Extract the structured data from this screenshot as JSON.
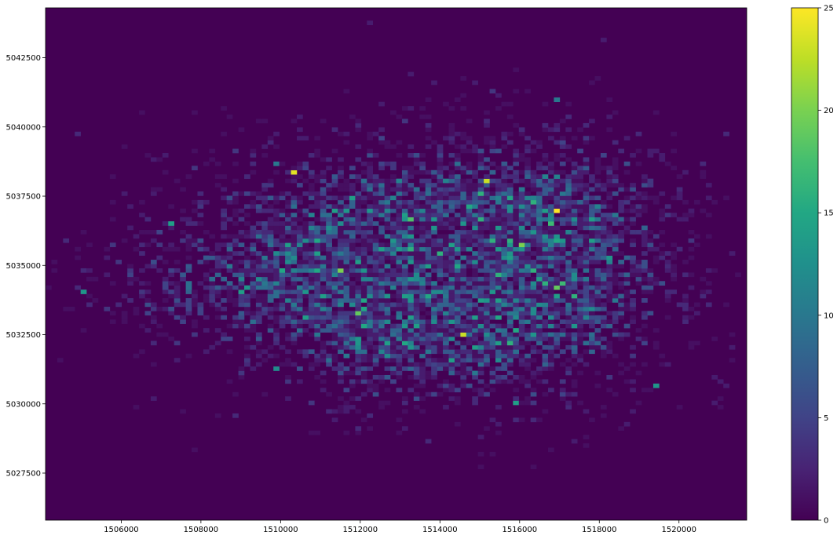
{
  "chart_data": {
    "type": "heatmap",
    "title": "",
    "xlabel": "",
    "ylabel": "",
    "xlim": [
      1504100,
      1521700
    ],
    "ylim": [
      5025800,
      5044300
    ],
    "grid": false,
    "bins": {
      "x": 120,
      "y": 120
    },
    "x_ticks": [
      1506000,
      1508000,
      1510000,
      1512000,
      1514000,
      1516000,
      1518000,
      1520000
    ],
    "x_tick_labels": [
      "1506000",
      "1508000",
      "1510000",
      "1512000",
      "1514000",
      "1516000",
      "1518000",
      "1520000"
    ],
    "y_ticks": [
      5027500,
      5030000,
      5032500,
      5035000,
      5037500,
      5040000,
      5042500
    ],
    "y_tick_labels": [
      "5027500",
      "5030000",
      "5032500",
      "5035000",
      "5037500",
      "5040000",
      "5042500"
    ],
    "colorbar": {
      "colormap": "viridis",
      "range": [
        0,
        25
      ],
      "ticks": [
        0,
        5,
        10,
        15,
        20,
        25
      ],
      "tick_labels": [
        "0",
        "5",
        "10",
        "15",
        "20",
        "25"
      ]
    },
    "density_clusters": [
      {
        "cx": 1514200,
        "cy": 5035000,
        "sx": 3000,
        "sy": 2400,
        "w": 1.0
      },
      {
        "cx": 1516400,
        "cy": 5035600,
        "sx": 1800,
        "sy": 2400,
        "w": 0.8
      },
      {
        "cx": 1511400,
        "cy": 5035200,
        "sx": 2500,
        "sy": 2200,
        "w": 0.6
      },
      {
        "cx": 1513800,
        "cy": 5032600,
        "sx": 2000,
        "sy": 1400,
        "w": 0.6
      },
      {
        "cx": 1508400,
        "cy": 5034300,
        "sx": 2000,
        "sy": 1200,
        "w": 0.3
      }
    ],
    "hot_cells": [
      {
        "x": 1510300,
        "y": 5038300,
        "count": 24
      },
      {
        "x": 1516950,
        "y": 5037050,
        "count": 25
      },
      {
        "x": 1515200,
        "y": 5038100,
        "count": 23
      },
      {
        "x": 1514650,
        "y": 5032500,
        "count": 23
      },
      {
        "x": 1511550,
        "y": 5034800,
        "count": 20
      },
      {
        "x": 1512000,
        "y": 5033200,
        "count": 19
      },
      {
        "x": 1513300,
        "y": 5036650,
        "count": 18
      },
      {
        "x": 1516100,
        "y": 5035750,
        "count": 20
      },
      {
        "x": 1516950,
        "y": 5034250,
        "count": 19
      },
      {
        "x": 1511300,
        "y": 5037000,
        "count": 14
      },
      {
        "x": 1511800,
        "y": 5037400,
        "count": 14
      },
      {
        "x": 1515050,
        "y": 5037600,
        "count": 16
      },
      {
        "x": 1515700,
        "y": 5037400,
        "count": 15
      },
      {
        "x": 1515900,
        "y": 5030100,
        "count": 14
      },
      {
        "x": 1519450,
        "y": 5030700,
        "count": 13
      },
      {
        "x": 1509000,
        "y": 5034100,
        "count": 14
      },
      {
        "x": 1505000,
        "y": 5034100,
        "count": 13
      },
      {
        "x": 1507300,
        "y": 5036450,
        "count": 14
      },
      {
        "x": 1509850,
        "y": 5031300,
        "count": 12
      },
      {
        "x": 1513300,
        "y": 5033900,
        "count": 13
      },
      {
        "x": 1514300,
        "y": 5032300,
        "count": 12
      },
      {
        "x": 1515450,
        "y": 5036300,
        "count": 13
      },
      {
        "x": 1516300,
        "y": 5034300,
        "count": 12
      },
      {
        "x": 1514100,
        "y": 5033200,
        "count": 11
      },
      {
        "x": 1509850,
        "y": 5038650,
        "count": 10
      },
      {
        "x": 1516900,
        "y": 5041000,
        "count": 10
      }
    ]
  }
}
